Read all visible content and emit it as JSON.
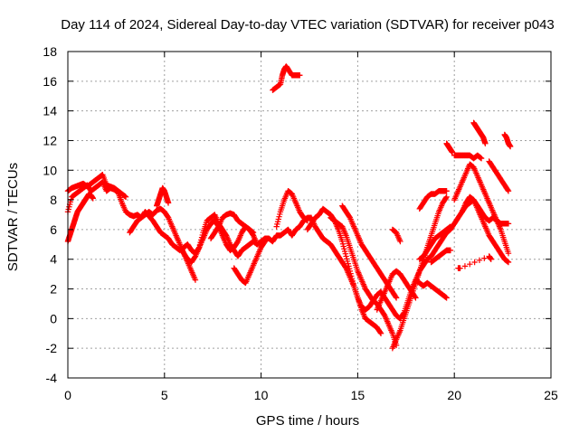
{
  "chart_data": {
    "type": "scatter",
    "title": "Day 114 of 2024, Sidereal Day-to-day VTEC variation (SDTVAR) for receiver p043",
    "xlabel": "GPS time / hours",
    "ylabel": "SDTVAR / TECUs",
    "xlim": [
      0,
      25
    ],
    "ylim": [
      -4,
      18
    ],
    "xticks": [
      0,
      5,
      10,
      15,
      20,
      25
    ],
    "yticks": [
      -4,
      -2,
      0,
      2,
      4,
      6,
      8,
      10,
      12,
      14,
      16,
      18
    ],
    "grid": true,
    "legend": "none",
    "marker": "plus",
    "color": "#ff0000",
    "series": [
      {
        "x": [
          0.0,
          0.2,
          0.4,
          0.6,
          0.8,
          1.0,
          1.2,
          1.4,
          1.6,
          1.8,
          2.0,
          2.2,
          2.4,
          2.6,
          2.8,
          3.0,
          3.2,
          3.4,
          3.6,
          3.8,
          4.0,
          4.2,
          4.4,
          4.6,
          4.8,
          5.0,
          5.2,
          5.4,
          5.6,
          5.8,
          6.0,
          6.2,
          6.4,
          6.6,
          6.8,
          7.0,
          7.2,
          7.4,
          7.6,
          7.8,
          8.0,
          8.2,
          8.4,
          8.6,
          8.8,
          9.0,
          9.2,
          9.4,
          9.6,
          9.8,
          10.0,
          10.2,
          10.4,
          10.6,
          10.8,
          11.0,
          11.2,
          11.4,
          11.6,
          11.8,
          12.0,
          12.2,
          12.4,
          12.6,
          12.8,
          13.0,
          13.2,
          13.4,
          13.6,
          13.8,
          14.0,
          14.2,
          14.4,
          14.6,
          14.8,
          15.0,
          15.2,
          15.4,
          15.6,
          15.8,
          16.0,
          16.2,
          16.4,
          16.6,
          16.8,
          17.0,
          17.2,
          17.4,
          17.6,
          17.8,
          18.0,
          18.2,
          18.4,
          18.6,
          18.8,
          19.0,
          19.2,
          19.4,
          19.6,
          19.8,
          20.0,
          20.2,
          20.4,
          20.6,
          20.8,
          21.0,
          21.2,
          21.4,
          21.6,
          21.8,
          22.0,
          22.2,
          22.4,
          22.6,
          22.8
        ],
        "y": [
          7.2,
          8.2,
          8.4,
          8.6,
          8.8,
          9.0,
          8.6,
          8.8,
          9.0,
          9.2,
          8.6,
          8.8,
          8.7,
          8.5,
          7.8,
          7.2,
          7.0,
          6.9,
          7.0,
          6.8,
          7.2,
          6.9,
          6.6,
          6.2,
          5.8,
          5.6,
          5.4,
          5.0,
          4.8,
          4.6,
          4.8,
          5.0,
          4.6,
          4.4,
          4.8,
          5.8,
          6.6,
          6.8,
          7.0,
          6.4,
          6.0,
          5.6,
          5.0,
          4.6,
          4.2,
          4.6,
          4.8,
          5.0,
          5.2,
          5.0,
          5.2,
          5.4,
          5.4,
          5.2,
          5.6,
          5.6,
          5.8,
          6.0,
          5.6,
          6.0,
          6.2,
          6.6,
          6.8,
          6.8,
          6.2,
          5.8,
          5.4,
          5.2,
          5.0,
          4.6,
          4.2,
          3.8,
          3.4,
          2.8,
          2.2,
          1.4,
          0.8,
          0.6,
          0.8,
          1.2,
          1.6,
          1.8,
          1.4,
          1.0,
          0.6,
          0.2,
          0.0,
          0.4,
          1.2,
          2.0,
          2.6,
          3.2,
          3.6,
          4.0,
          4.2,
          4.6,
          5.0,
          5.4,
          5.8,
          6.0,
          6.4,
          6.8,
          7.2,
          7.6,
          7.8,
          8.0,
          7.4,
          6.8,
          6.2,
          5.6,
          5.2,
          4.8,
          4.4,
          4.0,
          3.8
        ]
      },
      {
        "x": [
          0.0,
          0.1,
          0.2,
          0.3,
          0.4,
          0.5,
          0.6,
          0.7,
          0.8,
          0.9,
          1.0,
          1.1,
          1.2,
          1.3
        ],
        "y": [
          5.2,
          5.6,
          6.0,
          6.4,
          6.8,
          7.2,
          7.4,
          7.6,
          7.8,
          8.0,
          8.2,
          8.4,
          8.3,
          8.1
        ]
      },
      {
        "x": [
          0.0,
          0.2,
          0.4,
          0.6,
          0.8,
          1.0,
          1.2,
          1.4,
          1.6,
          1.8,
          2.0,
          2.2,
          2.4,
          2.6,
          2.8,
          3.0
        ],
        "y": [
          8.6,
          8.8,
          8.9,
          9.0,
          9.1,
          8.9,
          9.1,
          9.3,
          9.5,
          9.7,
          9.0,
          8.9,
          8.8,
          8.6,
          8.4,
          8.2
        ]
      },
      {
        "x": [
          3.2,
          3.4,
          3.6,
          3.8,
          4.0,
          4.2,
          4.4,
          4.6,
          4.8,
          5.0,
          5.2,
          5.4,
          5.6,
          5.8,
          6.0,
          6.2,
          6.4,
          6.6
        ],
        "y": [
          5.8,
          6.2,
          6.6,
          6.8,
          7.0,
          7.2,
          7.0,
          7.3,
          7.4,
          7.2,
          6.8,
          6.2,
          5.6,
          5.0,
          4.4,
          3.8,
          3.2,
          2.6
        ]
      },
      {
        "x": [
          4.6,
          4.7,
          4.8,
          4.9,
          5.0,
          5.1,
          5.2
        ],
        "y": [
          7.6,
          8.0,
          8.4,
          8.8,
          8.6,
          8.2,
          7.8
        ]
      },
      {
        "x": [
          5.8,
          6.0,
          6.2,
          6.4,
          6.6,
          6.8,
          7.0,
          7.2,
          7.4,
          7.6,
          7.8,
          8.0,
          8.2,
          8.4,
          8.6,
          8.8,
          9.0,
          9.2,
          9.4,
          9.6,
          9.8
        ],
        "y": [
          4.8,
          4.4,
          4.0,
          3.8,
          4.2,
          4.8,
          5.4,
          6.0,
          6.4,
          6.6,
          6.2,
          5.6,
          5.0,
          4.6,
          4.8,
          5.2,
          5.8,
          6.2,
          6.0,
          5.6,
          5.0
        ]
      },
      {
        "x": [
          7.4,
          7.6,
          7.8,
          8.0,
          8.2,
          8.4,
          8.6,
          8.8,
          9.0,
          9.2,
          9.4,
          9.6
        ],
        "y": [
          5.4,
          5.8,
          6.2,
          6.8,
          7.0,
          7.1,
          7.0,
          6.6,
          6.4,
          6.2,
          6.0,
          5.8
        ]
      },
      {
        "x": [
          8.6,
          8.8,
          9.0,
          9.2,
          9.4,
          9.6,
          9.8,
          10.0,
          10.2
        ],
        "y": [
          3.4,
          3.0,
          2.6,
          2.4,
          3.0,
          3.6,
          4.2,
          4.8,
          5.2
        ]
      },
      {
        "x": [
          10.6,
          10.8,
          11.0,
          11.1,
          11.2,
          11.3,
          11.4,
          11.6,
          11.8,
          12.0
        ],
        "y": [
          15.4,
          15.6,
          15.8,
          16.4,
          16.8,
          17.0,
          16.8,
          16.4,
          16.4,
          16.4
        ]
      },
      {
        "x": [
          10.8,
          11.0,
          11.2,
          11.4,
          11.6,
          11.8,
          12.0,
          12.2,
          12.4
        ],
        "y": [
          6.2,
          7.2,
          8.0,
          8.6,
          8.4,
          7.8,
          7.2,
          6.8,
          6.6
        ]
      },
      {
        "x": [
          12.4,
          12.6,
          12.8,
          13.0,
          13.2,
          13.4,
          13.6,
          13.8,
          14.0,
          14.2,
          14.4,
          14.6,
          14.8,
          15.0,
          15.2,
          15.4,
          15.6,
          15.8,
          16.0,
          16.2
        ],
        "y": [
          6.0,
          6.4,
          6.8,
          7.0,
          7.4,
          7.2,
          7.0,
          6.6,
          6.0,
          5.2,
          4.2,
          3.2,
          2.2,
          1.4,
          0.6,
          0.0,
          -0.2,
          -0.4,
          -0.6,
          -1.0
        ]
      },
      {
        "x": [
          13.6,
          13.8,
          14.0,
          14.2,
          14.4,
          14.6,
          14.8,
          15.0,
          15.2,
          15.4,
          15.6,
          15.8,
          16.0,
          16.2,
          16.4,
          16.6,
          16.8,
          17.0
        ],
        "y": [
          6.8,
          6.6,
          6.4,
          6.2,
          5.6,
          4.8,
          4.0,
          3.2,
          2.6,
          2.0,
          1.6,
          1.2,
          1.0,
          0.6,
          0.2,
          -0.4,
          -1.0,
          -1.8
        ]
      },
      {
        "x": [
          14.2,
          14.4,
          14.6,
          14.8,
          15.0,
          15.2,
          15.4,
          15.6,
          15.8,
          16.0,
          16.2,
          16.4,
          16.6,
          16.8,
          17.0
        ],
        "y": [
          7.6,
          7.2,
          6.8,
          6.2,
          5.6,
          5.0,
          4.6,
          4.2,
          3.8,
          3.4,
          3.0,
          2.6,
          2.2,
          1.8,
          1.4
        ]
      },
      {
        "x": [
          16.0,
          16.2,
          16.4,
          16.6,
          16.8,
          17.0,
          17.2,
          17.4,
          17.6,
          17.8,
          18.0
        ],
        "y": [
          0.6,
          1.2,
          1.8,
          2.4,
          3.0,
          3.2,
          3.0,
          2.6,
          2.2,
          1.8,
          1.4
        ]
      },
      {
        "x": [
          16.8,
          17.0,
          17.2,
          17.4,
          17.6,
          17.8,
          18.0,
          18.2,
          18.4,
          18.6,
          18.8,
          19.0,
          19.2,
          19.4,
          19.6
        ],
        "y": [
          -2.0,
          -1.4,
          -0.8,
          0.0,
          0.8,
          1.6,
          2.4,
          3.2,
          4.0,
          4.8,
          5.6,
          6.4,
          7.2,
          7.8,
          8.2
        ]
      },
      {
        "x": [
          18.2,
          18.4,
          18.6,
          18.8,
          19.0,
          19.2,
          19.4,
          19.6
        ],
        "y": [
          7.4,
          7.8,
          8.2,
          8.4,
          8.4,
          8.6,
          8.6,
          8.6
        ]
      },
      {
        "x": [
          18.0,
          18.2,
          18.4,
          18.6,
          18.8,
          19.0,
          19.2,
          19.4,
          19.6
        ],
        "y": [
          2.6,
          2.4,
          2.2,
          2.4,
          2.2,
          2.0,
          1.8,
          1.6,
          1.4
        ]
      },
      {
        "x": [
          18.2,
          18.4,
          18.6,
          18.8,
          19.0,
          19.2,
          19.4,
          19.6,
          19.8
        ],
        "y": [
          4.0,
          4.2,
          4.6,
          5.0,
          5.4,
          5.6,
          5.8,
          6.0,
          6.2
        ]
      },
      {
        "x": [
          18.8,
          19.0,
          19.2,
          19.4,
          19.6,
          19.8
        ],
        "y": [
          3.8,
          4.0,
          4.2,
          4.4,
          4.6,
          4.6
        ]
      },
      {
        "x": [
          16.8,
          17.0,
          17.2
        ],
        "y": [
          6.0,
          5.8,
          5.2
        ]
      },
      {
        "x": [
          19.6,
          19.7,
          19.8,
          19.9
        ],
        "y": [
          11.8,
          11.6,
          11.4,
          11.2
        ]
      },
      {
        "x": [
          20.0,
          20.2,
          20.4,
          20.6,
          20.8,
          21.0,
          21.2,
          21.4
        ],
        "y": [
          11.0,
          11.0,
          11.0,
          11.0,
          11.0,
          10.8,
          11.0,
          10.8
        ]
      },
      {
        "x": [
          20.0,
          20.2,
          20.4,
          20.6,
          20.8,
          21.0,
          21.2,
          21.4,
          21.6,
          21.8,
          22.0,
          22.2,
          22.4,
          22.6,
          22.8
        ],
        "y": [
          8.0,
          8.6,
          9.2,
          9.8,
          10.4,
          10.2,
          9.6,
          9.0,
          8.4,
          7.8,
          7.2,
          6.6,
          6.0,
          5.2,
          4.4
        ]
      },
      {
        "x": [
          20.4,
          20.6,
          20.8,
          21.0,
          21.2,
          21.4,
          21.6,
          21.8,
          22.0,
          22.2,
          22.4,
          22.6,
          22.8
        ],
        "y": [
          7.2,
          7.8,
          8.2,
          8.0,
          7.6,
          7.2,
          6.8,
          6.6,
          6.8,
          6.6,
          6.4,
          6.4,
          6.4
        ]
      },
      {
        "x": [
          21.0,
          21.1,
          21.2,
          21.3,
          21.4,
          21.5,
          21.6
        ],
        "y": [
          13.2,
          13.0,
          12.8,
          12.6,
          12.4,
          12.2,
          11.8
        ]
      },
      {
        "x": [
          21.8,
          22.0,
          22.2,
          22.4,
          22.6,
          22.8
        ],
        "y": [
          10.6,
          10.2,
          9.8,
          9.4,
          9.0,
          8.6
        ]
      },
      {
        "x": [
          22.6,
          22.7,
          22.8,
          22.9
        ],
        "y": [
          12.4,
          12.2,
          11.8,
          11.6
        ]
      },
      {
        "x": [
          20.2,
          20.3,
          21.8,
          21.9
        ],
        "y": [
          3.4,
          3.4,
          4.2,
          4.0
        ]
      }
    ]
  }
}
